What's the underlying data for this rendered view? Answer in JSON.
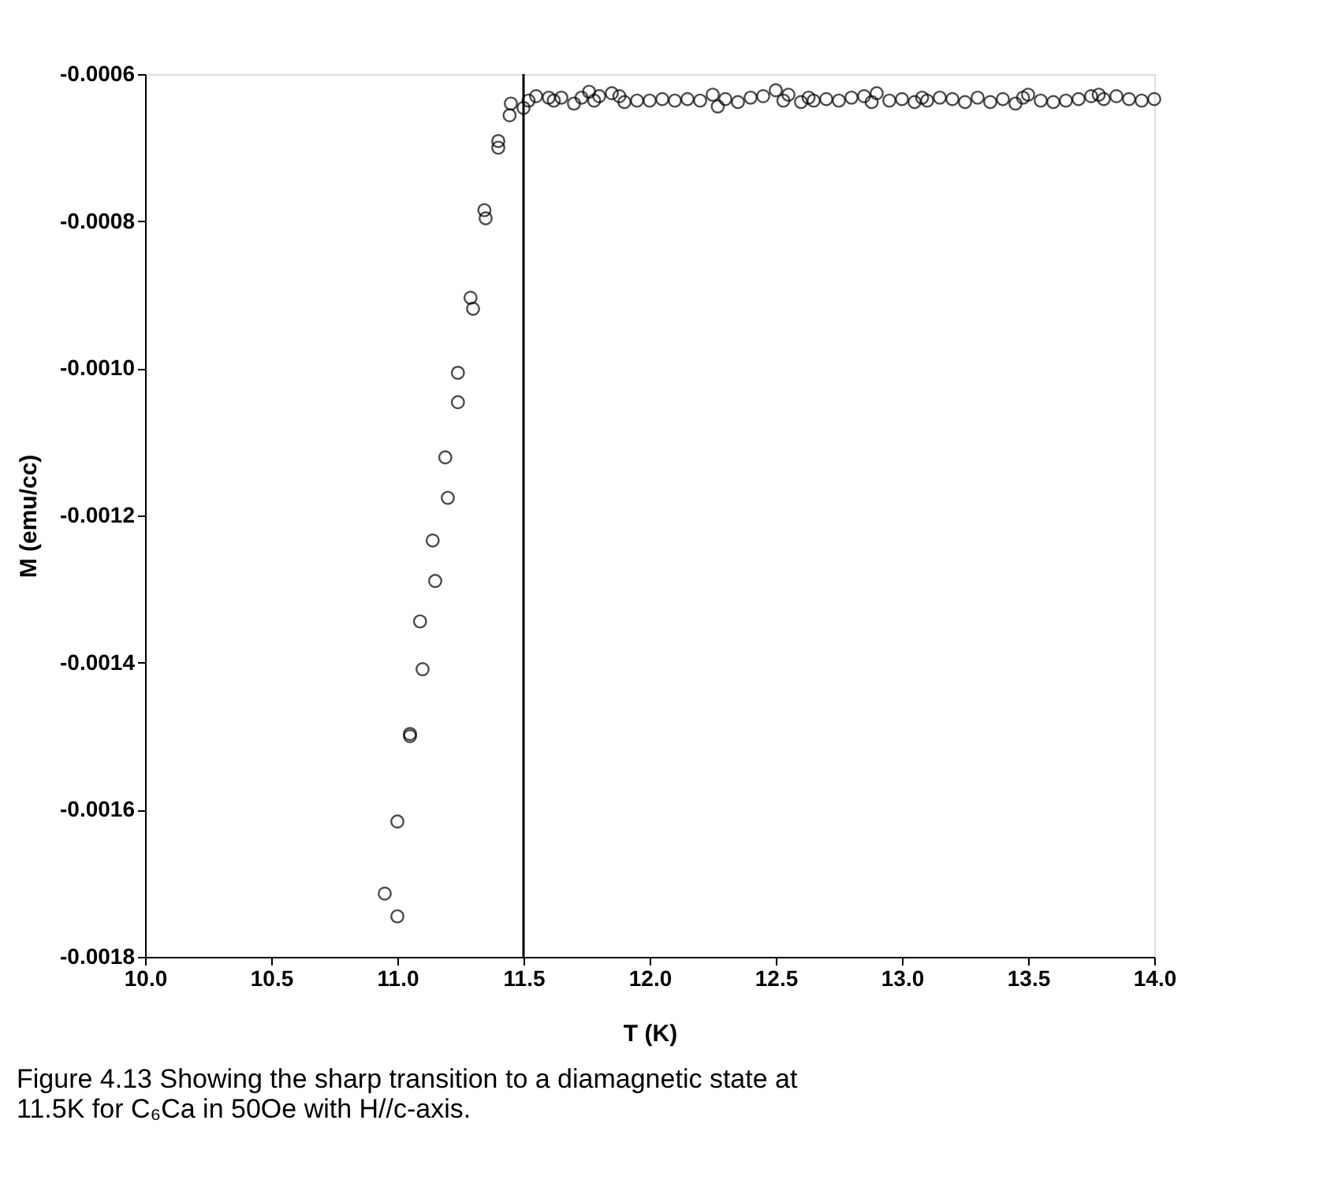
{
  "chart_data": {
    "type": "scatter",
    "xlabel": "T (K)",
    "ylabel": "M (emu/cc)",
    "x": [
      10.95,
      11.0,
      11.0,
      11.05,
      11.05,
      11.09,
      11.1,
      11.14,
      11.15,
      11.19,
      11.2,
      11.24,
      11.24,
      11.29,
      11.3,
      11.345,
      11.35,
      11.4,
      11.4,
      11.445,
      11.45,
      11.5,
      11.52,
      11.55,
      11.6,
      11.62,
      11.65,
      11.7,
      11.73,
      11.76,
      11.78,
      11.8,
      11.85,
      11.88,
      11.9,
      11.95,
      12.0,
      12.05,
      12.1,
      12.15,
      12.2,
      12.25,
      12.27,
      12.3,
      12.35,
      12.4,
      12.45,
      12.5,
      12.53,
      12.55,
      12.6,
      12.63,
      12.65,
      12.7,
      12.75,
      12.8,
      12.85,
      12.88,
      12.9,
      12.95,
      13.0,
      13.05,
      13.08,
      13.1,
      13.15,
      13.2,
      13.25,
      13.3,
      13.35,
      13.4,
      13.45,
      13.48,
      13.5,
      13.55,
      13.6,
      13.65,
      13.7,
      13.75,
      13.78,
      13.8,
      13.85,
      13.9,
      13.95,
      14.0
    ],
    "series": [
      {
        "color": "#000000",
        "values": [
          -0.001714,
          -0.001745,
          -0.001616,
          -0.001497,
          -0.0015,
          -0.001344,
          -0.001409,
          -0.001234,
          -0.001289,
          -0.001121,
          -0.001176,
          -0.001006,
          -0.001046,
          -0.000904,
          -0.000919,
          -0.000785,
          -0.000796,
          -0.000691,
          -0.0007,
          -0.000656,
          -0.00064,
          -0.000646,
          -0.000636,
          -0.00063,
          -0.000632,
          -0.000636,
          -0.000632,
          -0.00064,
          -0.000632,
          -0.000624,
          -0.000636,
          -0.00063,
          -0.000626,
          -0.00063,
          -0.000638,
          -0.000636,
          -0.000636,
          -0.000634,
          -0.000636,
          -0.000634,
          -0.000636,
          -0.000628,
          -0.000644,
          -0.000634,
          -0.000638,
          -0.000632,
          -0.00063,
          -0.000622,
          -0.000636,
          -0.000628,
          -0.000638,
          -0.000632,
          -0.000636,
          -0.000634,
          -0.000636,
          -0.000632,
          -0.00063,
          -0.000638,
          -0.000626,
          -0.000636,
          -0.000634,
          -0.000638,
          -0.000632,
          -0.000636,
          -0.000632,
          -0.000634,
          -0.000638,
          -0.000632,
          -0.000638,
          -0.000634,
          -0.00064,
          -0.000632,
          -0.000628,
          -0.000636,
          -0.000638,
          -0.000636,
          -0.000634,
          -0.00063,
          -0.000628,
          -0.000634,
          -0.00063,
          -0.000634,
          -0.000636,
          -0.000634
        ]
      }
    ],
    "xlim": [
      10.0,
      14.0
    ],
    "ylim": [
      -0.0018,
      -0.0006
    ],
    "xticks": [
      {
        "value": 10,
        "label": "10.0"
      },
      10.5,
      {
        "value": 11,
        "label": "11.0"
      },
      11.5,
      {
        "value": 12,
        "label": "12.0"
      },
      12.5,
      {
        "value": 13,
        "label": "13.0"
      },
      13.5,
      {
        "value": 14,
        "label": "14.0"
      }
    ],
    "yticks": [
      -0.0018,
      -0.0016,
      -0.0014,
      -0.0012,
      {
        "value": -0.001,
        "label": "-0.0010"
      },
      -0.0008,
      -0.0006
    ],
    "ref_lines": [
      {
        "axis": "x",
        "value": 11.5,
        "color": "#000000"
      }
    ],
    "marker": "circle",
    "grid": false,
    "annotations": [
      "Figure 4.13 Showing the sharp transition to a diamagnetic state at 11.5K for C₆Ca in 50Oe with H//c-axis."
    ]
  }
}
